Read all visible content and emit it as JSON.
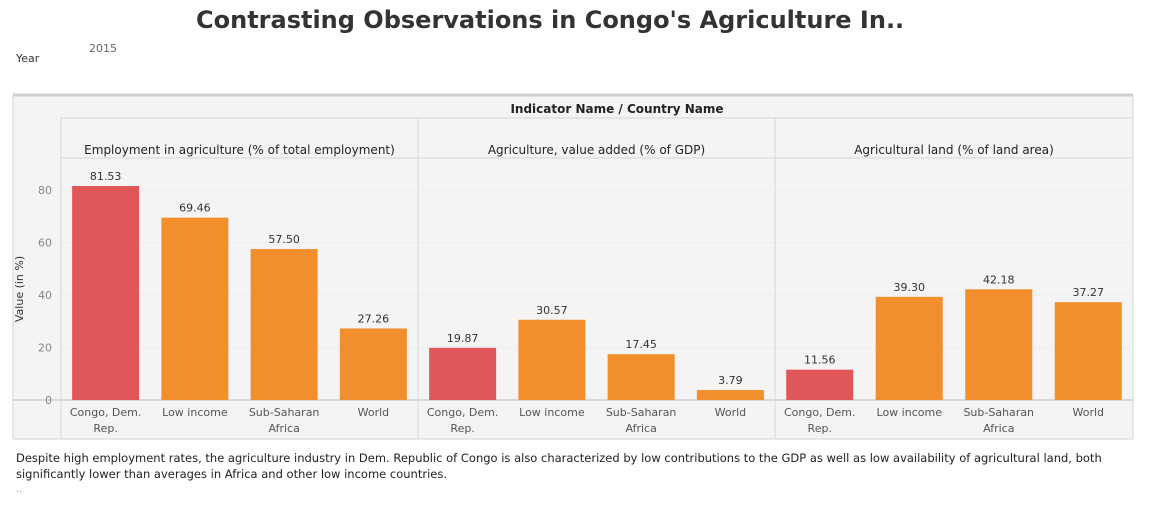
{
  "title": "Contrasting Observations in Congo's Agriculture In..",
  "filter": {
    "label": "Year",
    "value": "2015"
  },
  "caption": "Despite high employment rates, the agriculture industry in Dem. Republic of Congo is also characterized by low contributions to the GDP as well as low availability of agricultural land, both significantly lower than averages in Africa and other low income countries.",
  "caption_dots": "..",
  "colors": {
    "highlight": "#e15759",
    "default": "#f28e2b",
    "panel_bg": "#f4f4f4",
    "grid": "#e6e6e6"
  },
  "chart_data": {
    "type": "bar",
    "header_title": "Indicator Name / Country Name",
    "ylabel": "Value (in %)",
    "ylim": [
      0,
      82
    ],
    "yticks": [
      0,
      20,
      40,
      60,
      80
    ],
    "value_format": "2 decimals",
    "categories": [
      [
        "Congo, Dem.",
        "Rep."
      ],
      [
        "Low income"
      ],
      [
        "Sub-Saharan",
        "Africa"
      ],
      [
        "World"
      ]
    ],
    "highlight_index": 0,
    "panels": [
      {
        "name": "Employment in agriculture (% of total employment)",
        "values": [
          81.53,
          69.46,
          57.5,
          27.26
        ]
      },
      {
        "name": "Agriculture, value added (% of GDP)",
        "values": [
          19.87,
          30.57,
          17.45,
          3.79
        ]
      },
      {
        "name": "Agricultural land (% of land area)",
        "values": [
          11.56,
          39.3,
          42.18,
          37.27
        ]
      }
    ]
  }
}
